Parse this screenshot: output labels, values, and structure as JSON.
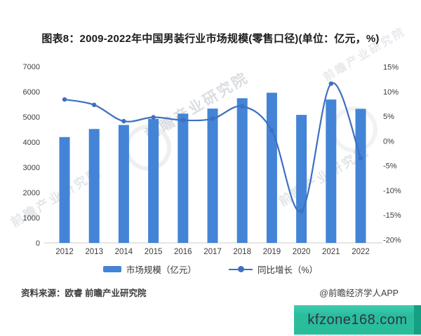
{
  "title": "图表8：2009-2022年中国男装行业市场规模(零售口径)(单位：亿元，%)",
  "chart_data": {
    "type": "bar+line combo",
    "categories": [
      "2012",
      "2013",
      "2014",
      "2015",
      "2016",
      "2017",
      "2018",
      "2019",
      "2020",
      "2021",
      "2022"
    ],
    "series": [
      {
        "name": "市场规模（亿元）",
        "type": "bar",
        "axis": "left",
        "color": "#4384d6",
        "values": [
          4200,
          4520,
          4680,
          4920,
          5130,
          5330,
          5740,
          5960,
          5080,
          5690,
          5320
        ]
      },
      {
        "name": "同比增长（%）",
        "type": "line",
        "axis": "right",
        "color": "#3c70c2",
        "values": [
          8.4,
          7.3,
          4.0,
          4.8,
          4.2,
          4.5,
          7.0,
          2.1,
          -14.2,
          11.6,
          -3.5
        ]
      }
    ],
    "left_axis": {
      "min": 0,
      "max": 7000,
      "ticks": [
        7000,
        6000,
        5000,
        4000,
        3000,
        2000,
        1000,
        0
      ]
    },
    "right_axis": {
      "min": -20,
      "max": 15,
      "tick_labels": [
        "15%",
        "10%",
        "5%",
        "0%",
        "-5%",
        "-10%",
        "-15%",
        "-20%"
      ],
      "tick_values": [
        15,
        10,
        5,
        0,
        -5,
        -10,
        -15,
        -20
      ]
    },
    "grid": false,
    "legend_position": "bottom"
  },
  "legend": {
    "bar_label": "市场规模（亿元）",
    "line_label": "同比增长（%）"
  },
  "footer": {
    "source": "资料来源：欧睿 前瞻产业研究院",
    "credit": "@前瞻经济学人APP"
  },
  "watermark": {
    "text": "前瞻产业研究院",
    "badge": "kfzone168.com",
    "badge_color": "#29bd9c"
  }
}
